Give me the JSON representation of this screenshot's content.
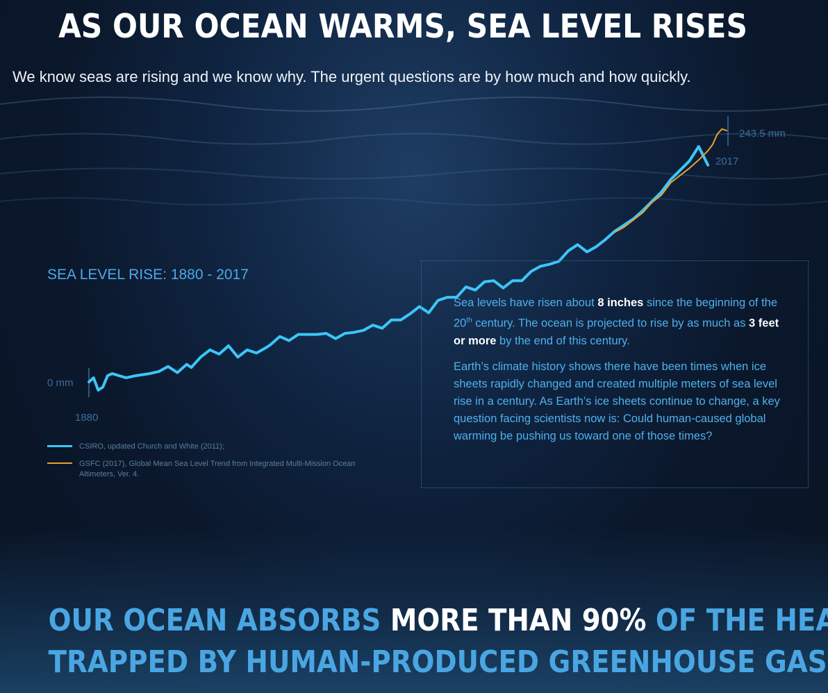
{
  "header": {
    "title": "AS OUR OCEAN WARMS, SEA LEVEL RISES",
    "subtitle": "We know seas are rising and we know why.  The urgent questions are by how much and how quickly."
  },
  "chart_data": {
    "type": "line",
    "title": "SEA LEVEL RISE: 1880 - 2017",
    "xlim": [
      1880,
      2017
    ],
    "ylim": [
      0,
      243.5
    ],
    "x_start_label": "1880",
    "x_end_label": "2017",
    "y_start_label": "0 mm",
    "y_end_label": "243.5 mm",
    "grid": false,
    "legend_position": "bottom-left",
    "series": [
      {
        "name": "CSIRO, updated Church and White (2011);",
        "color": "#3cc6f7",
        "x": [
          1880,
          1881,
          1882,
          1883,
          1884,
          1885,
          1888,
          1890,
          1893,
          1895,
          1897,
          1899,
          1901,
          1902,
          1904,
          1906,
          1908,
          1910,
          1912,
          1914,
          1916,
          1918,
          1919,
          1921,
          1923,
          1925,
          1927,
          1929,
          1931,
          1933,
          1935,
          1937,
          1939,
          1941,
          1943,
          1945,
          1947,
          1949,
          1951,
          1953,
          1955,
          1957,
          1959,
          1961,
          1963,
          1965,
          1967,
          1969,
          1971,
          1973,
          1975,
          1977,
          1979,
          1981,
          1983,
          1985,
          1987,
          1989,
          1991,
          1993,
          1995,
          1997,
          1999,
          2001,
          2003,
          2005,
          2007,
          2009,
          2011,
          2013
        ],
        "y": [
          0,
          4,
          -8,
          -5,
          6,
          8,
          4,
          6,
          8,
          10,
          15,
          9,
          17,
          14,
          24,
          31,
          27,
          35,
          24,
          31,
          28,
          33,
          36,
          44,
          40,
          46,
          46,
          46,
          47,
          42,
          47,
          48,
          50,
          55,
          52,
          60,
          60,
          66,
          73,
          67,
          79,
          82,
          82,
          92,
          89,
          97,
          98,
          91,
          98,
          98,
          107,
          112,
          114,
          117,
          127,
          133,
          126,
          131,
          138,
          146,
          152,
          158,
          166,
          175,
          184,
          196,
          205,
          214,
          228,
          210
        ]
      },
      {
        "name": "GSFC (2017), Global Mean Sea Level Trend from Integrated Multi-Mission Ocean Altimeters, Ver. 4.",
        "color": "#e8a030",
        "x": [
          1993,
          1995,
          1997,
          1999,
          2001,
          2003,
          2005,
          2007,
          2009,
          2011,
          2013,
          2014,
          2015,
          2016,
          2017
        ],
        "y": [
          145,
          150,
          157,
          164,
          174,
          181,
          193,
          200,
          207,
          215,
          224,
          230,
          240,
          245,
          243.5
        ]
      }
    ]
  },
  "info": {
    "p1_a": "Sea levels have risen about ",
    "p1_b": "8 inches",
    "p1_c": " since the beginning of the 20",
    "p1_sup": "th",
    "p1_d": " century. The ocean is projected to rise by as much as ",
    "p1_e": "3 feet or more",
    "p1_f": " by the end of this century.",
    "p2": "Earth’s climate history shows there have been times when ice sheets rapidly changed and created multiple meters of sea level rise in a century. As Earth’s ice sheets continue to change, a key question facing scientists now is: Could human-caused global warming be pushing us toward one of those times?"
  },
  "footer": {
    "line1_a": "OUR OCEAN ABSORBS ",
    "line1_b": "MORE THAN 90%",
    "line1_c": " OF THE HEAT",
    "line2": "TRAPPED BY HUMAN-PRODUCED GREENHOUSE GASES"
  }
}
